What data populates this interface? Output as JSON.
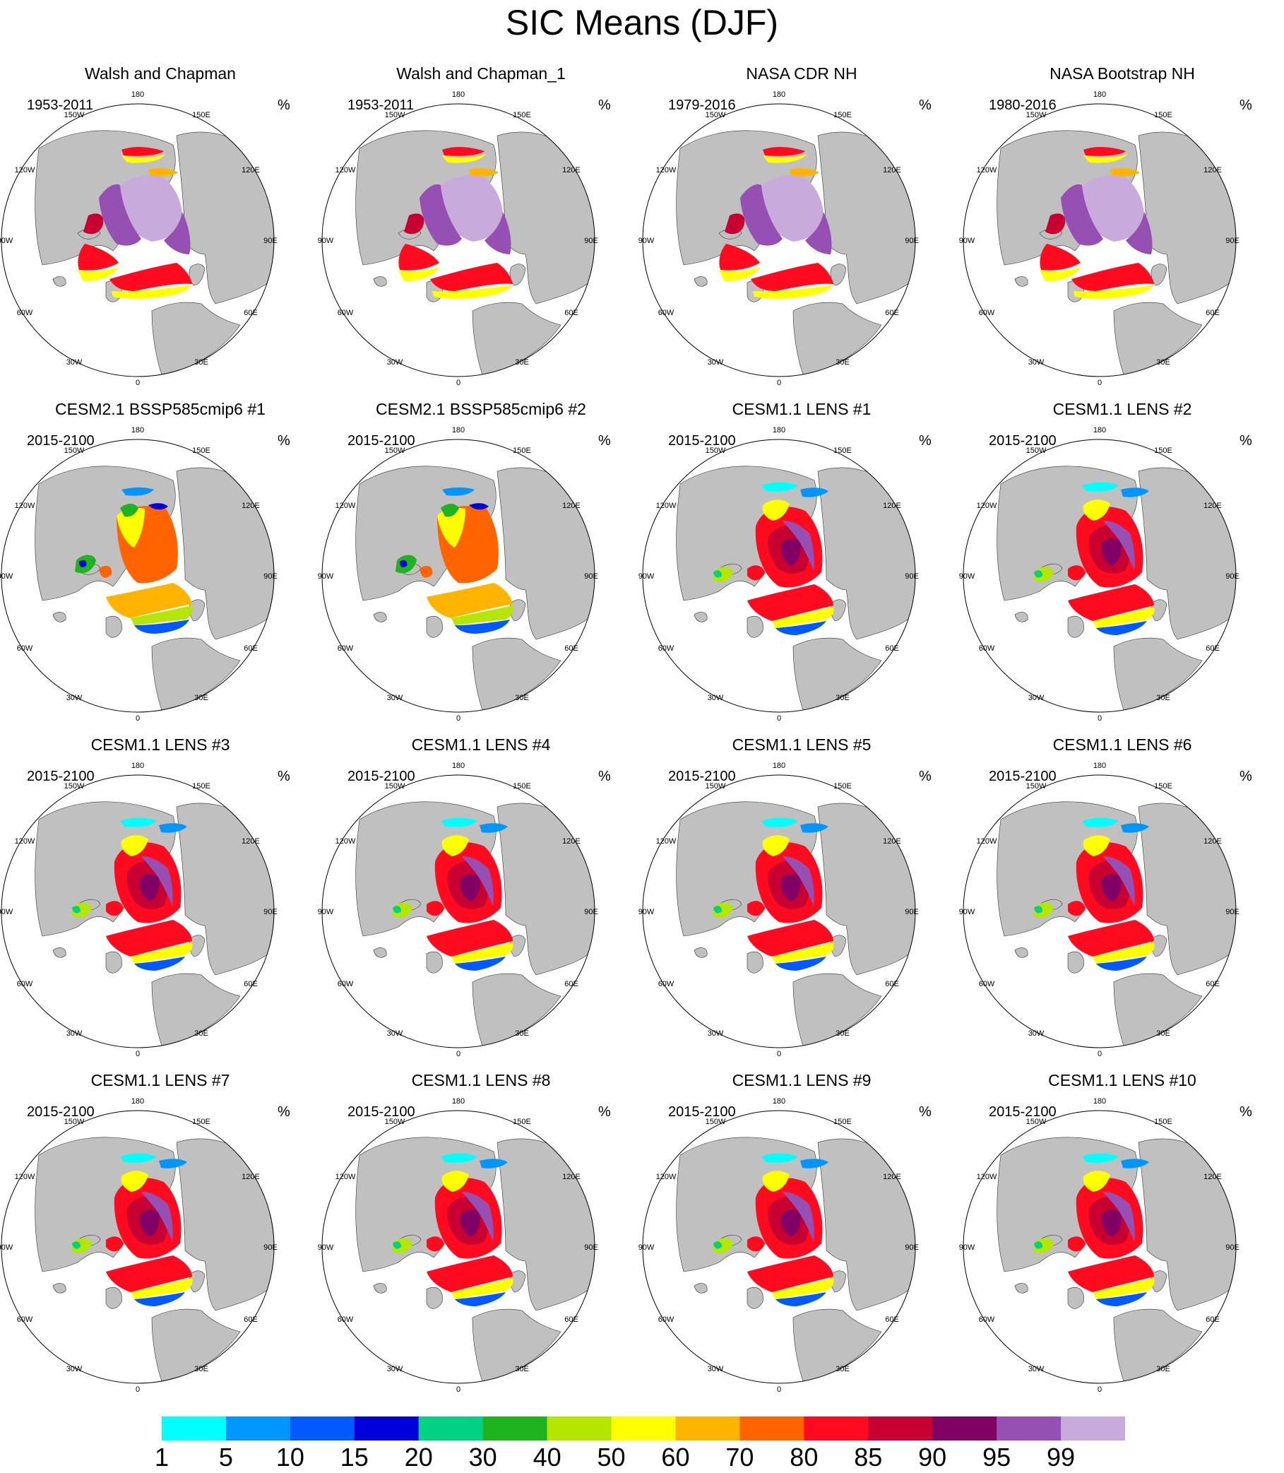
{
  "title": "SIC Means (DJF)",
  "unit": "%",
  "longitude_labels": [
    "180",
    "150E",
    "120E",
    "90E",
    "60E",
    "30E",
    "0",
    "30W",
    "60W",
    "90W",
    "120W",
    "150W"
  ],
  "chart_data": {
    "type": "map-panels",
    "title": "SIC Means (DJF)",
    "panels": [
      {
        "title": "Walsh and Chapman",
        "period": "1953-2011",
        "unit": "%",
        "pattern": "obs"
      },
      {
        "title": "Walsh and Chapman_1",
        "period": "1953-2011",
        "unit": "%",
        "pattern": "obs"
      },
      {
        "title": "NASA CDR NH",
        "period": "1979-2016",
        "unit": "%",
        "pattern": "obs"
      },
      {
        "title": "NASA Bootstrap NH",
        "period": "1980-2016",
        "unit": "%",
        "pattern": "obs"
      },
      {
        "title": "CESM2.1 BSSP585cmip6 #1",
        "period": "2015-2100",
        "unit": "%",
        "pattern": "cesm2"
      },
      {
        "title": "CESM2.1 BSSP585cmip6 #2",
        "period": "2015-2100",
        "unit": "%",
        "pattern": "cesm2"
      },
      {
        "title": "CESM1.1 LENS #1",
        "period": "2015-2100",
        "unit": "%",
        "pattern": "lens"
      },
      {
        "title": "CESM1.1 LENS #2",
        "period": "2015-2100",
        "unit": "%",
        "pattern": "lens"
      },
      {
        "title": "CESM1.1 LENS #3",
        "period": "2015-2100",
        "unit": "%",
        "pattern": "lens"
      },
      {
        "title": "CESM1.1 LENS #4",
        "period": "2015-2100",
        "unit": "%",
        "pattern": "lens"
      },
      {
        "title": "CESM1.1 LENS #5",
        "period": "2015-2100",
        "unit": "%",
        "pattern": "lens"
      },
      {
        "title": "CESM1.1 LENS #6",
        "period": "2015-2100",
        "unit": "%",
        "pattern": "lens"
      },
      {
        "title": "CESM1.1 LENS #7",
        "period": "2015-2100",
        "unit": "%",
        "pattern": "lens"
      },
      {
        "title": "CESM1.1 LENS #8",
        "period": "2015-2100",
        "unit": "%",
        "pattern": "lens"
      },
      {
        "title": "CESM1.1 LENS #9",
        "period": "2015-2100",
        "unit": "%",
        "pattern": "lens"
      },
      {
        "title": "CESM1.1 LENS #10",
        "period": "2015-2100",
        "unit": "%",
        "pattern": "lens"
      }
    ],
    "colorbar": {
      "labels": [
        "1",
        "5",
        "10",
        "15",
        "20",
        "30",
        "40",
        "50",
        "60",
        "70",
        "80",
        "85",
        "90",
        "95",
        "99"
      ],
      "colors": [
        "#00ffff",
        "#0096ff",
        "#005aff",
        "#0000dc",
        "#00d282",
        "#1eb41e",
        "#b4e600",
        "#ffff00",
        "#ffb400",
        "#ff6400",
        "#ff0a1e",
        "#c80032",
        "#820064",
        "#9650b4",
        "#c8aadc"
      ]
    }
  }
}
